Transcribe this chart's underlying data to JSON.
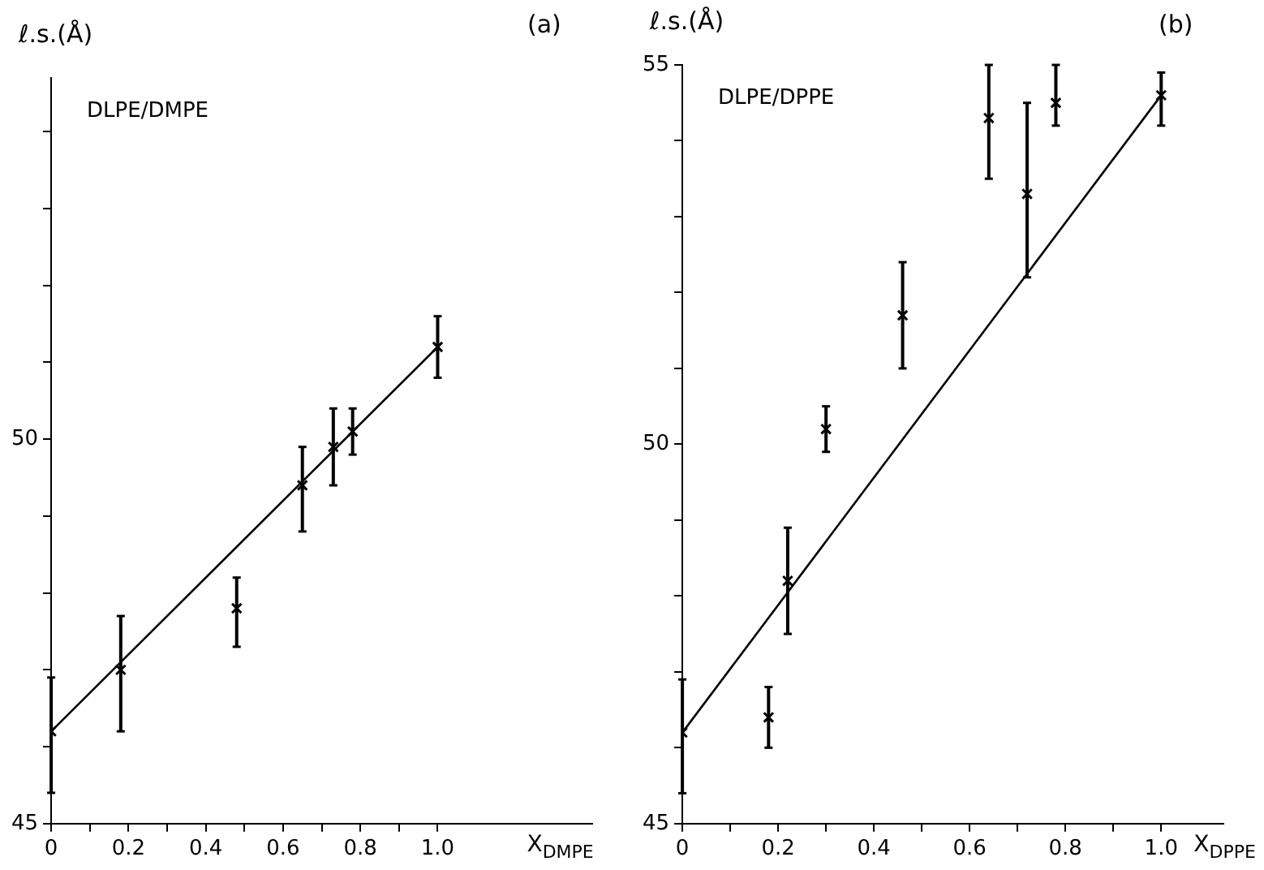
{
  "chart_data": [
    {
      "type": "scatter",
      "title": "DLPE/DMPE",
      "annotations": [
        "(a)"
      ],
      "xlabel": "X$_{DMPE}$",
      "ylabel": "ℓ.s.(Å)",
      "marker": "cross",
      "grid": false,
      "legend": false,
      "xlim": [
        0,
        1.4
      ],
      "xticks": [
        0,
        {
          "value": 0.1,
          "label": null
        },
        0.2,
        {
          "value": 0.3,
          "label": null
        },
        0.4,
        {
          "value": 0.5,
          "label": null
        },
        0.6,
        {
          "value": 0.7,
          "label": null
        },
        0.8,
        {
          "value": 0.9,
          "label": null
        },
        {
          "value": 1.0,
          "label": "1.0"
        }
      ],
      "ylim": [
        45,
        54.7
      ],
      "yticks": [
        45,
        {
          "value": 46,
          "label": null
        },
        {
          "value": 47,
          "label": null
        },
        {
          "value": 48,
          "label": null
        },
        {
          "value": 49,
          "label": null
        },
        50,
        {
          "value": 51,
          "label": null
        },
        {
          "value": 52,
          "label": null
        },
        {
          "value": 53,
          "label": null
        },
        {
          "value": 54,
          "label": null
        }
      ],
      "series": [
        {
          "color": "#000000",
          "x": [
            0,
            0.18,
            0.48,
            0.65,
            0.73,
            0.78,
            1.0
          ],
          "values": [
            46.2,
            47.0,
            47.8,
            49.4,
            49.9,
            50.1,
            51.2
          ],
          "errors": [
            [
              45.4,
              46.9
            ],
            [
              46.2,
              47.7
            ],
            [
              47.3,
              48.2
            ],
            [
              48.8,
              49.9
            ],
            [
              49.4,
              50.4
            ],
            [
              49.8,
              50.4
            ],
            [
              50.8,
              51.6
            ]
          ]
        },
        {
          "type": "line",
          "color": "#000000",
          "marker": "none",
          "x": [
            0,
            1.0
          ],
          "values": [
            46.2,
            51.2
          ]
        }
      ]
    },
    {
      "type": "scatter",
      "title": "DLPE/DPPE",
      "annotations": [
        "(b)"
      ],
      "xlabel": "X$_{DPPE}$",
      "ylabel": "ℓ.s.(Å)",
      "marker": "cross",
      "grid": false,
      "legend": false,
      "xlim": [
        0,
        1.13
      ],
      "xticks": [
        0,
        {
          "value": 0.1,
          "label": null
        },
        0.2,
        {
          "value": 0.3,
          "label": null
        },
        0.4,
        {
          "value": 0.5,
          "label": null
        },
        0.6,
        {
          "value": 0.7,
          "label": null
        },
        0.8,
        {
          "value": 0.9,
          "label": null
        },
        {
          "value": 1.0,
          "label": "1.0"
        }
      ],
      "ylim": [
        45,
        55
      ],
      "yticks": [
        45,
        {
          "value": 46,
          "label": null
        },
        {
          "value": 47,
          "label": null
        },
        {
          "value": 48,
          "label": null
        },
        {
          "value": 49,
          "label": null
        },
        50,
        {
          "value": 51,
          "label": null
        },
        {
          "value": 52,
          "label": null
        },
        {
          "value": 53,
          "label": null
        },
        {
          "value": 54,
          "label": null
        },
        55
      ],
      "series": [
        {
          "color": "#000000",
          "x": [
            0,
            0.18,
            0.22,
            0.3,
            0.46,
            0.64,
            0.72,
            0.78,
            1.0
          ],
          "values": [
            46.2,
            46.4,
            48.2,
            50.2,
            51.7,
            54.3,
            53.3,
            54.5,
            54.6
          ],
          "errors": [
            [
              45.4,
              46.9
            ],
            [
              46.0,
              46.8
            ],
            [
              47.5,
              48.9
            ],
            [
              49.9,
              50.5
            ],
            [
              51.0,
              52.4
            ],
            [
              53.5,
              55.0
            ],
            [
              52.2,
              54.5
            ],
            [
              54.2,
              55.0
            ],
            [
              54.2,
              54.9
            ]
          ]
        },
        {
          "type": "line",
          "color": "#000000",
          "marker": "none",
          "x": [
            0,
            1.0
          ],
          "values": [
            46.2,
            54.6
          ]
        }
      ]
    }
  ]
}
